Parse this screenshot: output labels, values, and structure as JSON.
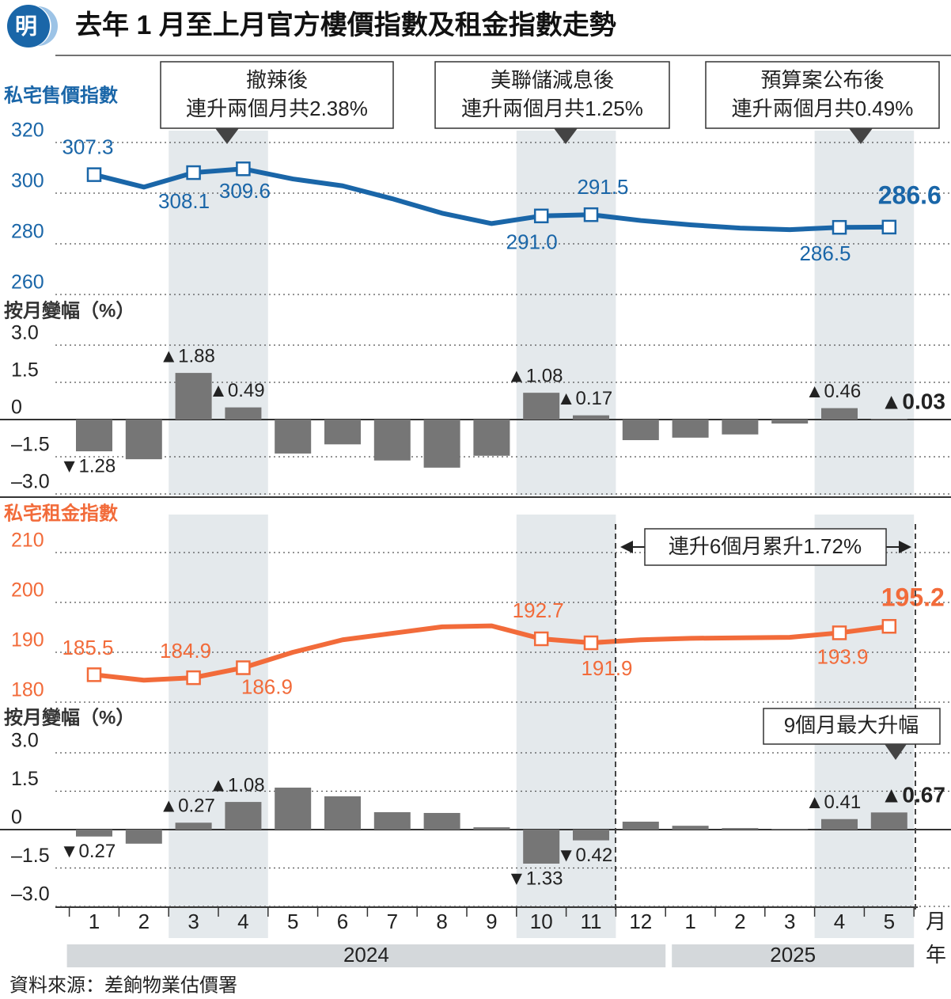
{
  "logo": "明",
  "title": "去年 1 月至上月官方樓價指數及租金指數走勢",
  "source": "資料來源：差餉物業估價署",
  "x_axis": {
    "categories": [
      "1",
      "2",
      "3",
      "4",
      "5",
      "6",
      "7",
      "8",
      "9",
      "10",
      "11",
      "12",
      "1",
      "2",
      "3",
      "4",
      "5"
    ],
    "unit": "月",
    "years": [
      "2024",
      "2025"
    ],
    "year_unit": "年"
  },
  "price_annotations": [
    {
      "lines": [
        "撤辣後",
        "連升兩個月共2.38%"
      ]
    },
    {
      "lines": [
        "美聯儲減息後",
        "連升兩個月共1.25%"
      ]
    },
    {
      "lines": [
        "預算案公布後",
        "連升兩個月共0.49%"
      ]
    }
  ],
  "rent_annotations": [
    "連升6個月累升1.72%",
    "9個月最大升幅"
  ],
  "chart_data": [
    {
      "type": "line",
      "title": "私宅售價指數",
      "color": "#1a66a8",
      "values": [
        307.3,
        302.4,
        308.1,
        309.6,
        305.6,
        302.9,
        297.8,
        292.1,
        288.0,
        291.0,
        291.5,
        289.2,
        287.5,
        286.2,
        285.6,
        286.5,
        286.6
      ],
      "value_labels": [
        "307.3",
        null,
        "308.1",
        "309.6",
        null,
        null,
        null,
        null,
        null,
        "291.0",
        "291.5",
        null,
        null,
        null,
        null,
        "286.5",
        "286.6"
      ],
      "ylim": [
        260,
        320
      ],
      "yticks": [
        260,
        280,
        300,
        320
      ],
      "grid": true
    },
    {
      "type": "bar",
      "title": "按月變幅（%）",
      "color": "#767676",
      "values": [
        -1.28,
        -1.6,
        1.88,
        0.49,
        -1.37,
        -1.0,
        -1.65,
        -1.94,
        -1.46,
        1.08,
        0.17,
        -0.83,
        -0.73,
        -0.6,
        -0.16,
        0.46,
        0.03
      ],
      "value_labels": [
        "▼1.28",
        null,
        "▲1.88",
        "▲0.49",
        null,
        null,
        null,
        null,
        null,
        "▲1.08",
        "▲0.17",
        null,
        null,
        null,
        null,
        "▲0.46",
        "▲0.03"
      ],
      "ylim": [
        -3,
        3
      ],
      "yticks": [
        {
          "value": -3,
          "label": "–3.0"
        },
        {
          "value": -1.5,
          "label": "–1.5"
        },
        0,
        {
          "value": 1.5,
          "label": "1.5"
        },
        {
          "value": 3,
          "label": "3.0"
        }
      ],
      "grid": true
    },
    {
      "type": "line",
      "title": "私宅租金指數",
      "color": "#f26b3a",
      "values": [
        185.5,
        184.4,
        184.9,
        186.9,
        190.0,
        192.5,
        193.8,
        195.1,
        195.3,
        192.7,
        191.9,
        192.5,
        192.8,
        192.9,
        193.0,
        193.9,
        195.2
      ],
      "value_labels": [
        "185.5",
        null,
        "184.9",
        "186.9",
        null,
        null,
        null,
        null,
        null,
        "192.7",
        "191.9",
        null,
        null,
        null,
        null,
        "193.9",
        "195.2"
      ],
      "ylim": [
        180,
        210
      ],
      "yticks": [
        180,
        190,
        200,
        210
      ],
      "grid": true
    },
    {
      "type": "bar",
      "title": "按月變幅（%）",
      "color": "#767676",
      "values": [
        -0.27,
        -0.55,
        0.27,
        1.08,
        1.64,
        1.3,
        0.68,
        0.65,
        0.09,
        -1.33,
        -0.42,
        0.31,
        0.15,
        0.06,
        0.03,
        0.41,
        0.67
      ],
      "value_labels": [
        "▼0.27",
        null,
        "▲0.27",
        "▲1.08",
        null,
        null,
        null,
        null,
        null,
        "▼1.33",
        "▼0.42",
        null,
        null,
        null,
        null,
        "▲0.41",
        "▲0.67"
      ],
      "ylim": [
        -3,
        3
      ],
      "yticks": [
        {
          "value": -3,
          "label": "–3.0"
        },
        {
          "value": -1.5,
          "label": "–1.5"
        },
        0,
        {
          "value": 1.5,
          "label": "1.5"
        },
        {
          "value": 3,
          "label": "3.0"
        }
      ],
      "grid": true
    }
  ]
}
